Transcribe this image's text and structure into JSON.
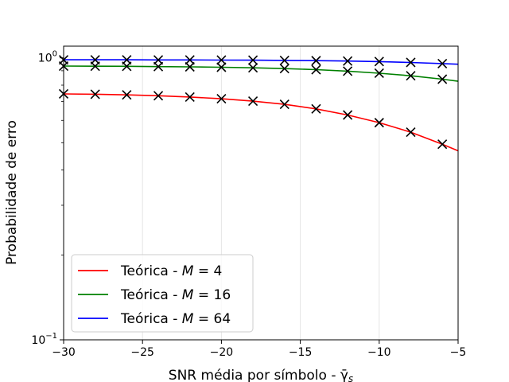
{
  "chart_data": {
    "type": "line",
    "title": "",
    "xlabel": "SNR média por símbolo - γ̄",
    "xlabel_subscript": "s",
    "ylabel": "Probabilidade de erro",
    "xlim": [
      -30,
      -5
    ],
    "ylim": [
      0.1,
      1.1
    ],
    "yscale": "log",
    "grid": "vertical",
    "legend_position": "lower-left",
    "x_ticks": [
      -30,
      -25,
      -20,
      -15,
      -10,
      -5
    ],
    "x_tick_labels": [
      "−30",
      "−25",
      "−20",
      "−15",
      "−10",
      "−5"
    ],
    "y_ticks": [
      {
        "value": 1.0,
        "base": "10",
        "exp": "0"
      },
      {
        "value": 0.1,
        "base": "10",
        "exp": "−1"
      }
    ],
    "marker_x": [
      -30,
      -28,
      -26,
      -24,
      -22,
      -20,
      -18,
      -16,
      -14,
      -12,
      -10,
      -8,
      -6
    ],
    "series": [
      {
        "name": "Teórica - ",
        "legend_var": "M",
        "legend_value": " = 4",
        "color": "#ff0000",
        "x": [
          -30,
          -28,
          -26,
          -24,
          -22,
          -20,
          -18,
          -16,
          -14,
          -12,
          -10,
          -8,
          -6,
          -5
        ],
        "y": [
          0.745,
          0.743,
          0.739,
          0.734,
          0.726,
          0.716,
          0.702,
          0.684,
          0.659,
          0.627,
          0.589,
          0.545,
          0.494,
          0.468
        ],
        "markers": [
          0.745,
          0.743,
          0.739,
          0.734,
          0.726,
          0.716,
          0.702,
          0.684,
          0.659,
          0.627,
          0.589,
          0.545,
          0.494
        ]
      },
      {
        "name": "Teórica - ",
        "legend_var": "M",
        "legend_value": " = 16",
        "color": "#008000",
        "x": [
          -30,
          -28,
          -26,
          -24,
          -22,
          -20,
          -18,
          -16,
          -14,
          -12,
          -10,
          -8,
          -6,
          -5
        ],
        "y": [
          0.935,
          0.934,
          0.933,
          0.931,
          0.929,
          0.926,
          0.922,
          0.916,
          0.908,
          0.897,
          0.882,
          0.864,
          0.84,
          0.826
        ],
        "markers": [
          0.935,
          0.934,
          0.933,
          0.931,
          0.929,
          0.926,
          0.922,
          0.916,
          0.908,
          0.897,
          0.882,
          0.864,
          0.84
        ]
      },
      {
        "name": "Teórica - ",
        "legend_var": "M",
        "legend_value": " = 64",
        "color": "#0000ff",
        "x": [
          -30,
          -28,
          -26,
          -24,
          -22,
          -20,
          -18,
          -16,
          -14,
          -12,
          -10,
          -8,
          -6,
          -5
        ],
        "y": [
          0.984,
          0.984,
          0.984,
          0.983,
          0.983,
          0.982,
          0.981,
          0.979,
          0.977,
          0.974,
          0.97,
          0.963,
          0.954,
          0.949
        ],
        "markers": [
          0.984,
          0.984,
          0.984,
          0.983,
          0.983,
          0.982,
          0.981,
          0.979,
          0.977,
          0.974,
          0.97,
          0.963,
          0.954
        ]
      }
    ]
  }
}
